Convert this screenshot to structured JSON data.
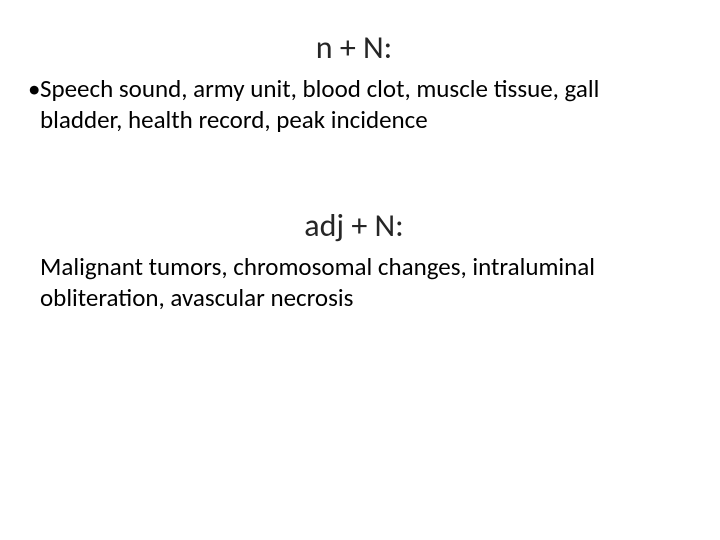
{
  "slide": {
    "background_color": "#ffffff",
    "text_color": "#000000",
    "heading_color": "#262626",
    "heading_fontsize_pt": 32,
    "body_fontsize_pt": 25,
    "font_family": "Calibri",
    "sections": [
      {
        "heading": "n + N:",
        "bulleted": true,
        "text": "Speech sound, army unit, blood clot, muscle tissue, gall bladder, health record, peak incidence"
      },
      {
        "heading": "adj + N:",
        "bulleted": false,
        "text": "Malignant tumors, chromosomal changes, intraluminal obliteration, avascular necrosis"
      }
    ]
  }
}
